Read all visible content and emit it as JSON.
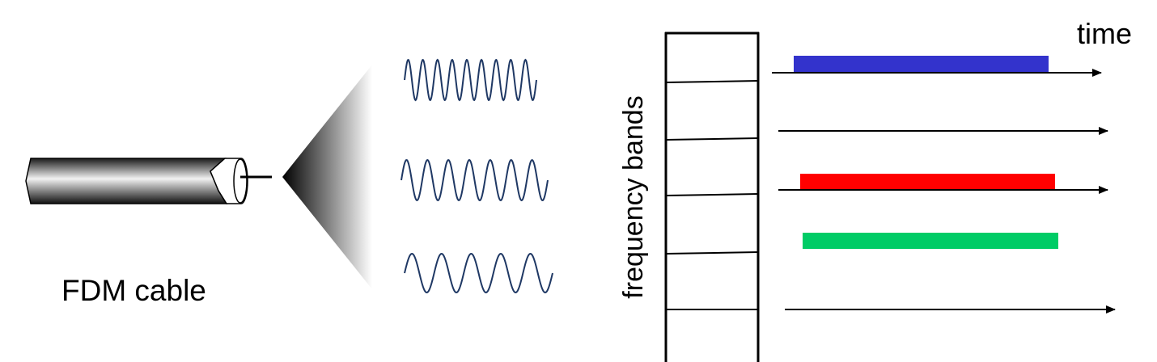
{
  "labels": {
    "cable": "FDM cable",
    "time_axis": "time",
    "frequency_axis": "frequency bands"
  },
  "colors": {
    "wave": "#1f3864",
    "stroke": "#000000",
    "band_blue": "#3333cc",
    "band_red": "#ff0000",
    "band_green": "#00cc66"
  },
  "icons": [
    "coax-cable-icon",
    "signal-spread-cone"
  ],
  "waves": [
    {
      "name": "high-frequency-wave",
      "cycles": 9
    },
    {
      "name": "medium-frequency-wave",
      "cycles": 7
    },
    {
      "name": "low-frequency-wave",
      "cycles": 5
    }
  ],
  "bands": [
    {
      "name": "band-1",
      "color_key": "band_blue",
      "active": true
    },
    {
      "name": "band-2",
      "color_key": null,
      "active": false
    },
    {
      "name": "band-3",
      "color_key": "band_red",
      "active": true
    },
    {
      "name": "band-4",
      "color_key": "band_green",
      "active": true
    },
    {
      "name": "band-5",
      "color_key": null,
      "active": false
    }
  ]
}
